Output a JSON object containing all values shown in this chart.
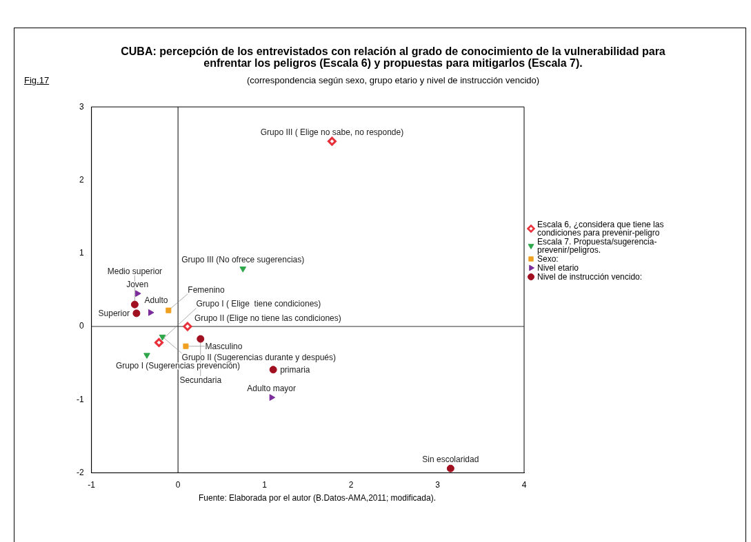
{
  "chart_data": {
    "type": "scatter",
    "title": "CUBA: percepción de los entrevistados con relación al grado de conocimiento de la vulnerabilidad para enfrentar los peligros (Escala 6)  y propuestas para mitigarlos (Escala 7).",
    "subtitle": "(correspondencia según sexo, grupo etario y nivel de instrucción vencido)",
    "xlim": [
      -1,
      4
    ],
    "xticks": [
      -1,
      0,
      1,
      2,
      3,
      4
    ],
    "ylim": [
      -2,
      3
    ],
    "yticks": [
      -2,
      -1,
      0,
      1,
      2,
      3
    ],
    "grid": false,
    "legend": "right",
    "ref_lines": [
      {
        "axis": "x",
        "value": 0,
        "color": "#000000"
      },
      {
        "axis": "y",
        "value": 0,
        "color": "#303030"
      }
    ],
    "series": [
      {
        "name": "Escala 6, ¿considera que tiene las condiciones para prevenir-peligro",
        "color": "#e8303a",
        "marker": "diamond",
        "x": [
          1.78,
          0.11,
          -0.22
        ],
        "values": [
          2.53,
          0.0,
          -0.22
        ]
      },
      {
        "name": "Escala 7. Propuesta/sugerencia-prevenir/peligros.",
        "color": "#2ea64a",
        "marker": "triangle",
        "x": [
          0.75,
          -0.18,
          -0.36
        ],
        "values": [
          0.79,
          -0.14,
          -0.39
        ]
      },
      {
        "name": "Sexo:",
        "color": "#f0a020",
        "marker": "square",
        "x": [
          -0.11,
          0.09
        ],
        "values": [
          0.22,
          -0.27
        ]
      },
      {
        "name": "Nivel etario",
        "color": "#7b2d9b",
        "marker": "triangle-right",
        "x": [
          -0.47,
          -0.32,
          1.08
        ],
        "values": [
          0.45,
          0.19,
          -0.97
        ]
      },
      {
        "name": "Nivel de instrucción vencido:",
        "color": "#a01020",
        "marker": "circle",
        "x": [
          -0.5,
          -0.48,
          0.26,
          1.1,
          3.15
        ],
        "values": [
          0.3,
          0.18,
          -0.17,
          -0.59,
          -1.94
        ]
      }
    ],
    "annotations": [
      "Fig.17",
      "Fuente: Elaborada por el autor (B.Datos-AMA,2011; modificada).",
      {
        "text": "Grupo III ( Elige no sabe, no responde)",
        "x": 1.78,
        "y": 2.53
      },
      {
        "text": "Grupo II (Elige no tiene las condiciones)",
        "x": 0.11,
        "y": 0.0
      },
      {
        "text": "Grupo I ( Elige  tiene condiciones)",
        "x": -0.22,
        "y": -0.22
      },
      {
        "text": "Grupo III (No ofrece sugerencias)",
        "x": 0.75,
        "y": 0.79
      },
      {
        "text": "Grupo II (Sugerencias durante y después)",
        "x": -0.18,
        "y": -0.14
      },
      {
        "text": "Grupo I (Sugerencias prevención)",
        "x": -0.36,
        "y": -0.39
      },
      {
        "text": "Femenino",
        "x": -0.11,
        "y": 0.22
      },
      {
        "text": "Masculino",
        "x": 0.09,
        "y": -0.27
      },
      {
        "text": "Joven",
        "x": -0.47,
        "y": 0.45
      },
      {
        "text": "Adulto",
        "x": -0.32,
        "y": 0.19
      },
      {
        "text": "Adulto mayor",
        "x": 1.08,
        "y": -0.97
      },
      {
        "text": "Medio superior",
        "x": -0.5,
        "y": 0.3
      },
      {
        "text": "Superior",
        "x": -0.48,
        "y": 0.18
      },
      {
        "text": "Secundaria",
        "x": 0.26,
        "y": -0.17
      },
      {
        "text": "primaria",
        "x": 1.1,
        "y": -0.59
      },
      {
        "text": "Sin escolaridad",
        "x": 3.15,
        "y": -1.94
      }
    ]
  }
}
